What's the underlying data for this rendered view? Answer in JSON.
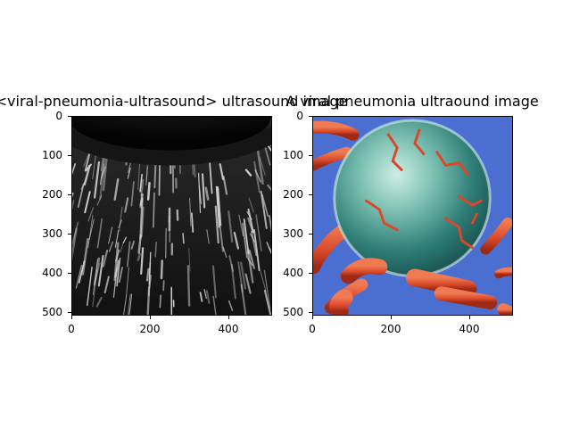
{
  "panels": [
    {
      "title": "<viral-pneumonia-ultrasound> ultrasound image",
      "image_description": "grayscale ultrasound texture with dark fan-shaped top and vertical bright streaks",
      "x_ticks": [
        "0",
        "200",
        "400"
      ],
      "y_ticks": [
        "0",
        "100",
        "200",
        "300",
        "400",
        "500"
      ]
    },
    {
      "title": "A viral pneumonia ultraound image",
      "image_description": "teal textured sphere with orange-red tubular structures on blue background",
      "x_ticks": [
        "0",
        "200",
        "400"
      ],
      "y_ticks": [
        "0",
        "100",
        "200",
        "300",
        "400",
        "500"
      ]
    }
  ],
  "colors": {
    "right_background": "#4a6fd0",
    "sphere": "#2f7f78",
    "sphere_highlight": "#bfe8dc",
    "tubes": "#d9482a"
  }
}
